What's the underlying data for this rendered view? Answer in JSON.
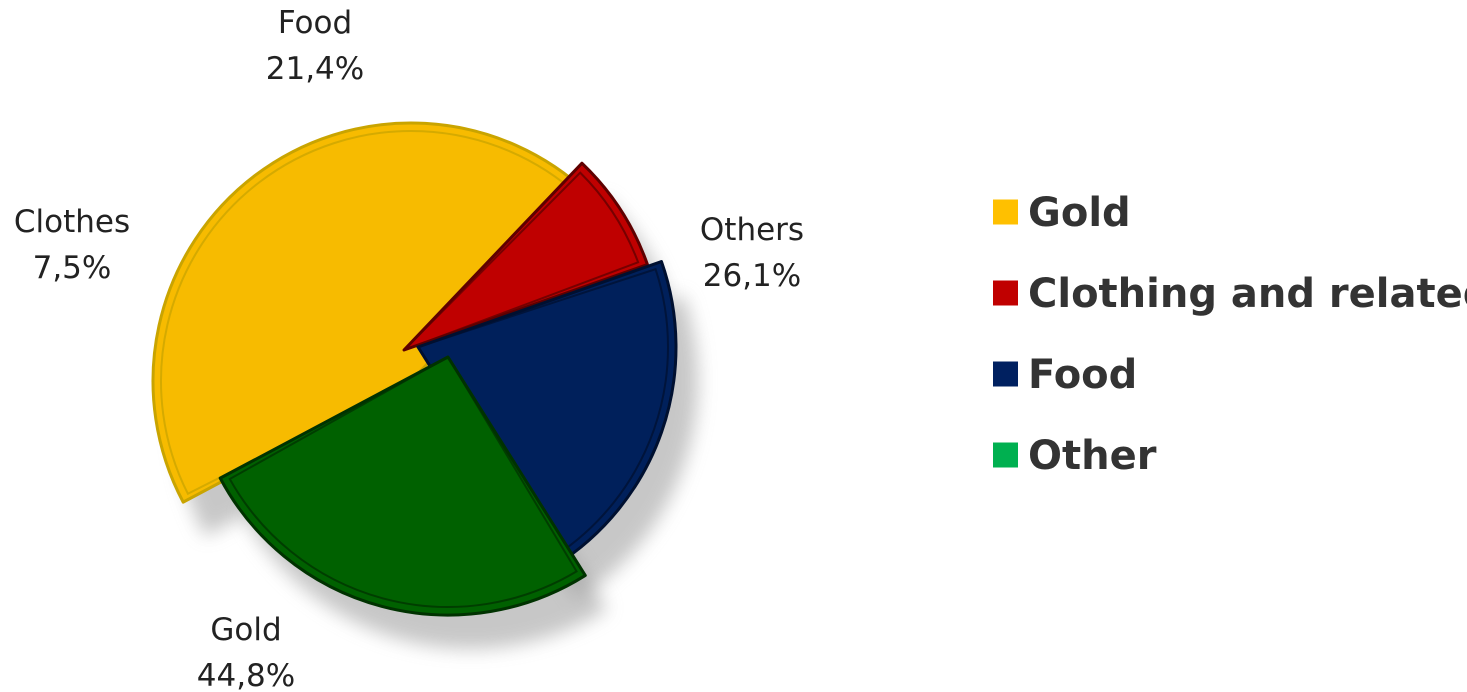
{
  "chart_data": {
    "type": "pie",
    "slices": [
      {
        "key": "gold",
        "label": "Gold",
        "value_label": "44,8%",
        "value": 44.8,
        "color": "#F7BB00",
        "stroke": "#C9A400"
      },
      {
        "key": "clothes",
        "label": "Clothes",
        "value_label": "7,5%",
        "value": 7.5,
        "color": "#BF0000",
        "stroke": "#5E0000"
      },
      {
        "key": "food",
        "label": "Food",
        "value_label": "21,4%",
        "value": 21.4,
        "color": "#00205B",
        "stroke": "#001030"
      },
      {
        "key": "others",
        "label": "Others",
        "value_label": "26,1%",
        "value": 26.1,
        "color": "#006100",
        "stroke": "#003200"
      }
    ],
    "legend": {
      "placement": "right",
      "items": [
        {
          "label": "Gold",
          "color": "#FFC000"
        },
        {
          "label": "Clothing and related",
          "color": "#C00000"
        },
        {
          "label": "Food",
          "color": "#002060"
        },
        {
          "label": "Other",
          "color": "#00B050"
        }
      ]
    },
    "exploded": true
  }
}
